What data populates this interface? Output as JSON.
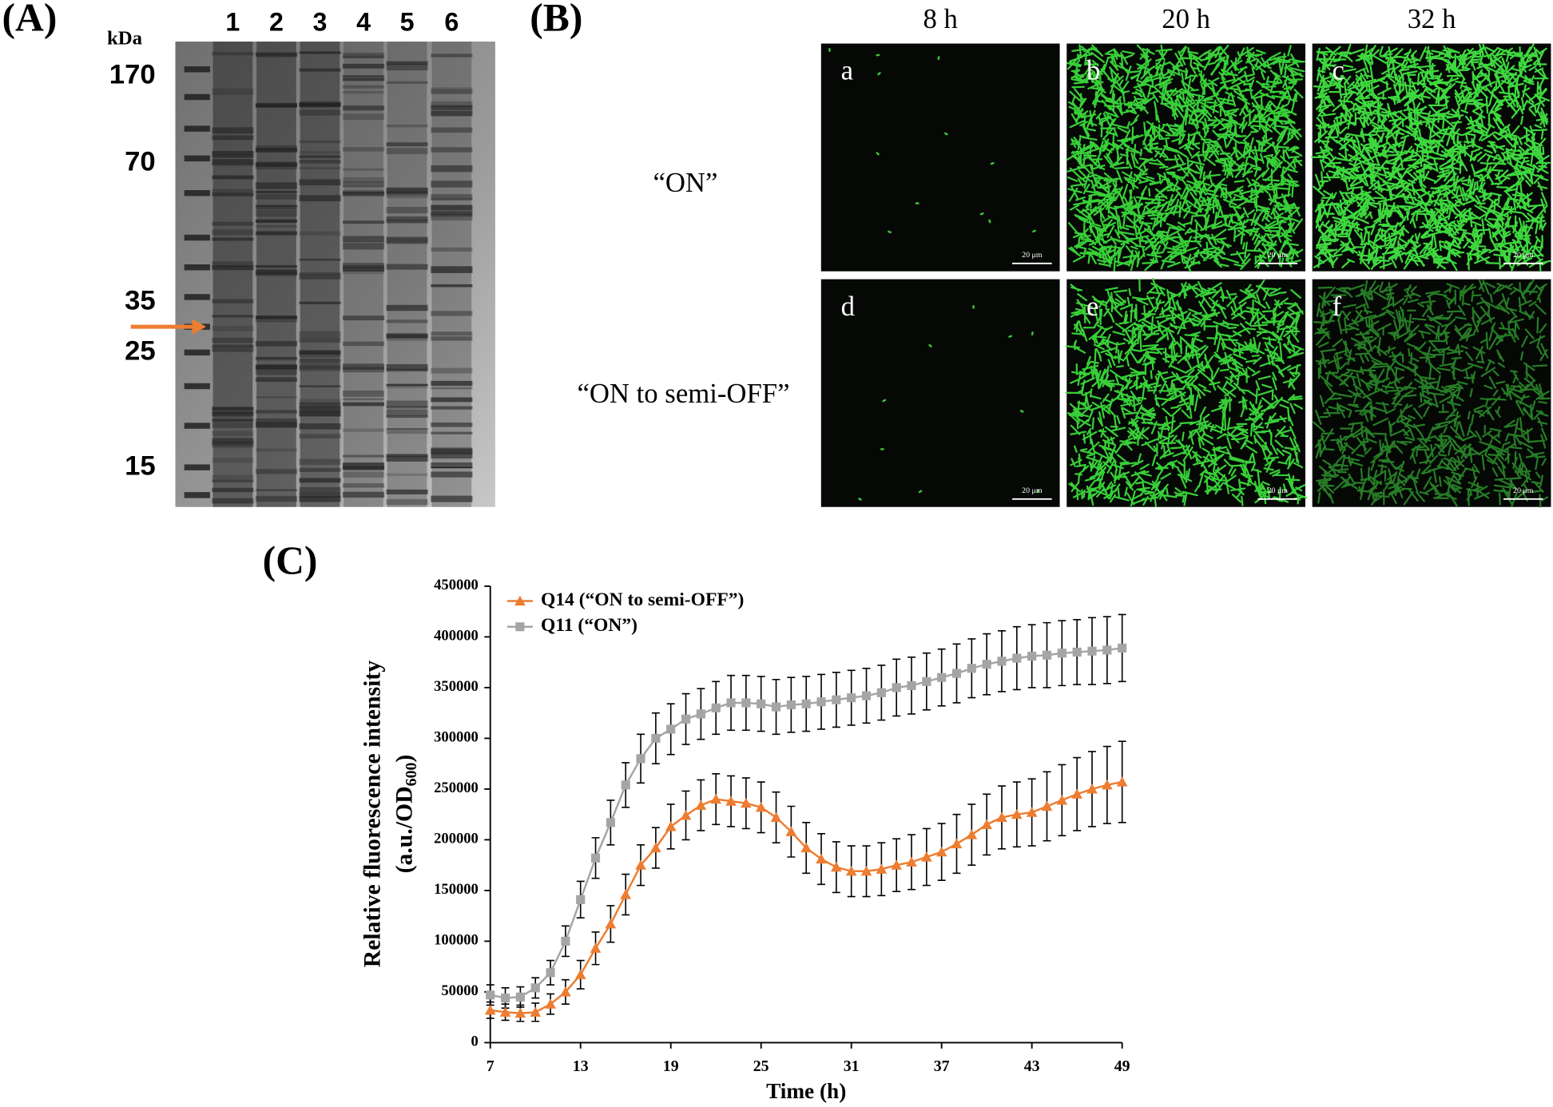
{
  "panel_a": {
    "label": "(A)",
    "unit": "kDa",
    "lanes": [
      "1",
      "2",
      "3",
      "4",
      "5",
      "6"
    ],
    "markers": [
      "170",
      "70",
      "35",
      "25",
      "15"
    ]
  },
  "panel_b": {
    "label": "(B)",
    "columns": [
      "8 h",
      "20 h",
      "32 h"
    ],
    "rows": [
      "“ON”",
      "“ON to semi-OFF”"
    ],
    "images": [
      {
        "letter": "a",
        "scale_bar": "20 μm"
      },
      {
        "letter": "b",
        "scale_bar": "20 μm"
      },
      {
        "letter": "c",
        "scale_bar": "20 μm"
      },
      {
        "letter": "d",
        "scale_bar": "20 μm"
      },
      {
        "letter": "e",
        "scale_bar": "20 μm"
      },
      {
        "letter": "f",
        "scale_bar": "20 μm"
      }
    ]
  },
  "chart_data": {
    "type": "line",
    "title": "(C)",
    "x_label": "Time (h)",
    "y_label": [
      "Relative fluorescence intensity",
      "(a.u./OD",
      "600",
      ")"
    ],
    "x": [
      7,
      8,
      9,
      10,
      11,
      12,
      13,
      14,
      15,
      16,
      17,
      18,
      19,
      20,
      21,
      22,
      23,
      24,
      25,
      26,
      27,
      28,
      29,
      30,
      31,
      32,
      33,
      34,
      35,
      36,
      37,
      38,
      39,
      40,
      41,
      42,
      43,
      44,
      45,
      46,
      47,
      48,
      49
    ],
    "series": [
      {
        "name": "Q14 (“ON to semi-OFF”)",
        "color": "#ed7d31",
        "marker": "triangle",
        "values": [
          32000,
          30000,
          29000,
          30000,
          38000,
          50000,
          67000,
          93000,
          117000,
          146000,
          175000,
          192000,
          213000,
          224000,
          234000,
          240000,
          238000,
          236000,
          232000,
          222000,
          208000,
          192000,
          181000,
          173000,
          169000,
          169000,
          171000,
          175000,
          178000,
          183000,
          188000,
          196000,
          205000,
          215000,
          222000,
          225000,
          227000,
          233000,
          239000,
          245000,
          250000,
          254000,
          257000
        ],
        "errors": [
          8000,
          8000,
          8000,
          9000,
          10000,
          12000,
          14000,
          16000,
          18000,
          20000,
          20000,
          20000,
          22000,
          24000,
          25000,
          25000,
          25000,
          25000,
          25000,
          25000,
          25000,
          25000,
          25000,
          25000,
          25000,
          25000,
          26000,
          26000,
          27000,
          28000,
          28000,
          29000,
          30000,
          30000,
          31000,
          32000,
          33000,
          34000,
          35000,
          36000,
          37000,
          38000,
          40000
        ]
      },
      {
        "name": "Q11 (“ON”)",
        "color": "#a5a5a5",
        "marker": "square",
        "values": [
          47000,
          44000,
          45000,
          54000,
          69000,
          100000,
          141000,
          182000,
          217000,
          254000,
          280000,
          300000,
          309000,
          319000,
          324000,
          330000,
          335000,
          335000,
          334000,
          331000,
          333000,
          334000,
          336000,
          338000,
          340000,
          342000,
          345000,
          350000,
          352000,
          356000,
          360000,
          364000,
          369000,
          373000,
          376000,
          379000,
          381000,
          382000,
          384000,
          385000,
          386000,
          387000,
          389000
        ],
        "errors": [
          10000,
          10000,
          10000,
          10000,
          12000,
          15000,
          18000,
          20000,
          22000,
          22000,
          24000,
          25000,
          25000,
          25000,
          25000,
          26000,
          27000,
          27000,
          27000,
          27000,
          27000,
          27000,
          27000,
          27000,
          27000,
          27000,
          27000,
          28000,
          28000,
          28000,
          28000,
          29000,
          29000,
          30000,
          30000,
          31000,
          31000,
          32000,
          32000,
          32000,
          33000,
          33000,
          33000
        ]
      }
    ],
    "xlim": [
      7,
      49
    ],
    "xticks": [
      7,
      13,
      19,
      25,
      31,
      37,
      43,
      49
    ],
    "ylim": [
      0,
      450000
    ],
    "yticks": [
      0,
      50000,
      100000,
      150000,
      200000,
      250000,
      300000,
      350000,
      400000,
      450000
    ],
    "grid": false,
    "legend": "upper left"
  }
}
